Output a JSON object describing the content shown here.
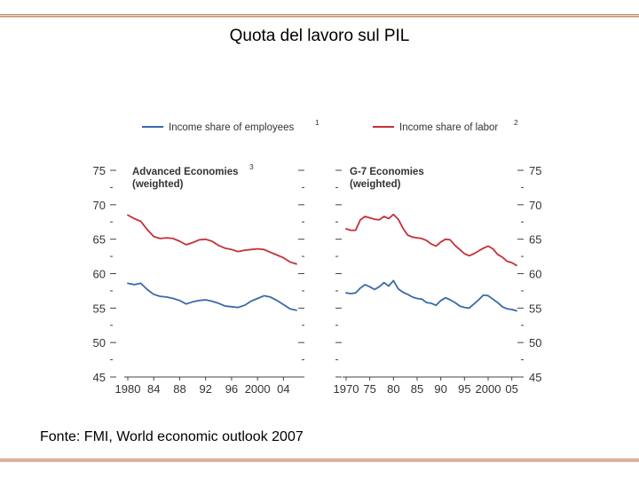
{
  "slide": {
    "title": "Quota del lavoro sul PIL",
    "source": "Fonte: FMI, World economic outlook 2007"
  },
  "legend": {
    "employees": "Income share of employees",
    "employees_note": "1",
    "labor": "Income share of labor",
    "labor_note": "2"
  },
  "colors": {
    "employees": "#3a6aa8",
    "labor": "#c4303a"
  },
  "chart_data": [
    {
      "type": "line",
      "title": "Advanced Economies",
      "title_note": "3",
      "subtitle": "(weighted)",
      "ylim": [
        45,
        75
      ],
      "yticks": [
        45,
        50,
        55,
        60,
        65,
        70,
        75
      ],
      "xlim": [
        1980,
        2006
      ],
      "xtick_labels": [
        "1980",
        "84",
        "88",
        "92",
        "96",
        "2000",
        "04"
      ],
      "xticks": [
        1980,
        1984,
        1988,
        1992,
        1996,
        2000,
        2004
      ],
      "series": [
        {
          "name": "Income share of labor",
          "color": "#c4303a",
          "x": [
            1980,
            1981,
            1982,
            1983,
            1984,
            1985,
            1986,
            1987,
            1988,
            1989,
            1990,
            1991,
            1992,
            1993,
            1994,
            1995,
            1996,
            1997,
            1998,
            1999,
            2000,
            2001,
            2002,
            2003,
            2004,
            2005,
            2006
          ],
          "y": [
            68.5,
            68.0,
            67.6,
            66.4,
            65.4,
            65.1,
            65.2,
            65.1,
            64.7,
            64.2,
            64.5,
            64.9,
            65.0,
            64.7,
            64.1,
            63.7,
            63.5,
            63.2,
            63.4,
            63.5,
            63.6,
            63.5,
            63.1,
            62.7,
            62.3,
            61.7,
            61.4
          ]
        },
        {
          "name": "Income share of employees",
          "color": "#3a6aa8",
          "x": [
            1980,
            1981,
            1982,
            1983,
            1984,
            1985,
            1986,
            1987,
            1988,
            1989,
            1990,
            1991,
            1992,
            1993,
            1994,
            1995,
            1996,
            1997,
            1998,
            1999,
            2000,
            2001,
            2002,
            2003,
            2004,
            2005,
            2006
          ],
          "y": [
            58.6,
            58.4,
            58.6,
            57.7,
            57.0,
            56.7,
            56.6,
            56.4,
            56.1,
            55.6,
            55.9,
            56.1,
            56.2,
            56.0,
            55.7,
            55.3,
            55.2,
            55.1,
            55.4,
            56.0,
            56.4,
            56.8,
            56.6,
            56.1,
            55.5,
            54.9,
            54.7
          ]
        }
      ]
    },
    {
      "type": "line",
      "title": "G-7 Economies",
      "subtitle": "(weighted)",
      "ylim": [
        45,
        75
      ],
      "yticks": [
        45,
        50,
        55,
        60,
        65,
        70,
        75
      ],
      "xlim": [
        1970,
        2006
      ],
      "xtick_labels": [
        "1970",
        "75",
        "80",
        "85",
        "90",
        "95",
        "2000",
        "05"
      ],
      "xticks": [
        1970,
        1975,
        1980,
        1985,
        1990,
        1995,
        2000,
        2005
      ],
      "series": [
        {
          "name": "Income share of labor",
          "color": "#c4303a",
          "x": [
            1970,
            1971,
            1972,
            1973,
            1974,
            1975,
            1976,
            1977,
            1978,
            1979,
            1980,
            1981,
            1982,
            1983,
            1984,
            1985,
            1986,
            1987,
            1988,
            1989,
            1990,
            1991,
            1992,
            1993,
            1994,
            1995,
            1996,
            1997,
            1998,
            1999,
            2000,
            2001,
            2002,
            2003,
            2004,
            2005,
            2006
          ],
          "y": [
            66.5,
            66.3,
            66.3,
            67.8,
            68.3,
            68.1,
            67.9,
            67.8,
            68.3,
            68.0,
            68.6,
            67.9,
            66.6,
            65.6,
            65.3,
            65.2,
            65.1,
            64.8,
            64.3,
            64.0,
            64.6,
            65.0,
            64.9,
            64.1,
            63.5,
            62.9,
            62.6,
            62.9,
            63.3,
            63.7,
            64.0,
            63.6,
            62.8,
            62.4,
            61.8,
            61.6,
            61.2
          ]
        },
        {
          "name": "Income share of employees",
          "color": "#3a6aa8",
          "x": [
            1970,
            1971,
            1972,
            1973,
            1974,
            1975,
            1976,
            1977,
            1978,
            1979,
            1980,
            1981,
            1982,
            1983,
            1984,
            1985,
            1986,
            1987,
            1988,
            1989,
            1990,
            1991,
            1992,
            1993,
            1994,
            1995,
            1996,
            1997,
            1998,
            1999,
            2000,
            2001,
            2002,
            2003,
            2004,
            2005,
            2006
          ],
          "y": [
            57.2,
            57.1,
            57.2,
            57.9,
            58.4,
            58.1,
            57.7,
            58.1,
            58.7,
            58.2,
            59.0,
            57.8,
            57.3,
            57.0,
            56.6,
            56.4,
            56.3,
            55.8,
            55.7,
            55.4,
            56.1,
            56.5,
            56.2,
            55.8,
            55.3,
            55.1,
            55.0,
            55.6,
            56.2,
            56.9,
            56.8,
            56.3,
            55.8,
            55.2,
            54.9,
            54.8,
            54.6
          ]
        }
      ]
    }
  ]
}
